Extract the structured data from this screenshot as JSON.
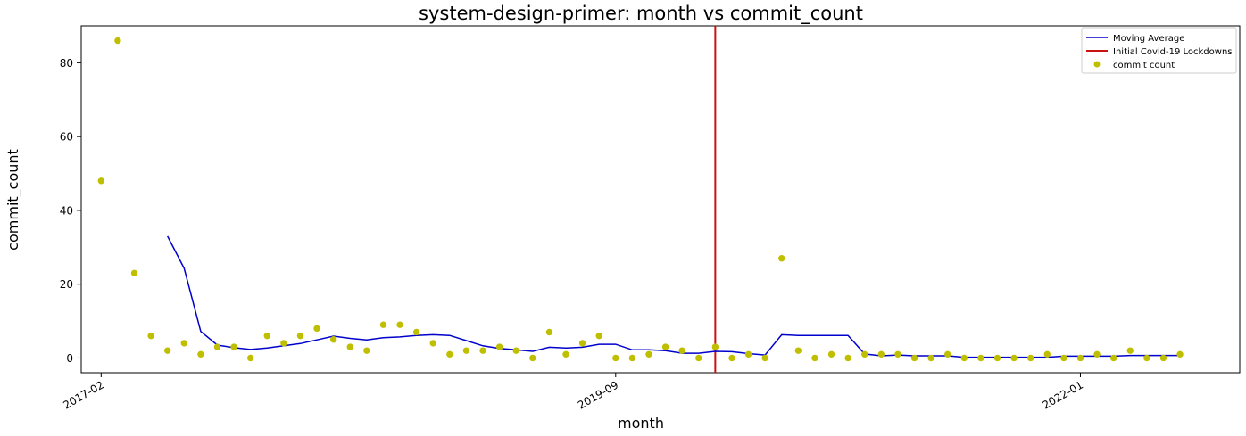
{
  "chart_data": {
    "type": "scatter",
    "title": "system-design-primer: month vs commit_count",
    "xlabel": "month",
    "ylabel": "commit_count",
    "x_ticks": [
      "2017-02",
      "2019-09",
      "2022-01"
    ],
    "x_tick_index": [
      0,
      31,
      59
    ],
    "y_ticks": [
      0,
      20,
      40,
      60,
      80
    ],
    "ylim": [
      -4,
      90
    ],
    "xlim_index": [
      -1.2,
      68.6
    ],
    "grid": false,
    "legend_position": "top-right",
    "legend": [
      {
        "label": "Moving Average",
        "kind": "line",
        "color": "#0000cc"
      },
      {
        "label": "Initial Covid-19 Lockdowns",
        "kind": "vline",
        "color": "#cc1111"
      },
      {
        "label": "commit count",
        "kind": "marker",
        "color": "#bfbf00"
      }
    ],
    "covid_lockdown_index": 37,
    "series": [
      {
        "name": "commit count",
        "type": "scatter",
        "color": "#bfbf00",
        "values": [
          48,
          86,
          23,
          6,
          2,
          4,
          1,
          3,
          3,
          0,
          6,
          4,
          6,
          8,
          5,
          3,
          2,
          9,
          9,
          7,
          4,
          1,
          2,
          2,
          3,
          2,
          0,
          7,
          1,
          4,
          6,
          0,
          0,
          1,
          3,
          2,
          0,
          3,
          0,
          1,
          0,
          27,
          2,
          0,
          1,
          0,
          1,
          1,
          1,
          0,
          0,
          1,
          0,
          0,
          0,
          0,
          0,
          1,
          0,
          0,
          1,
          0,
          2,
          0,
          0,
          1
        ]
      },
      {
        "name": "Moving Average",
        "type": "line",
        "color": "#0000cc",
        "start_index": 4,
        "values": [
          33,
          24.3,
          7.2,
          3.5,
          2.8,
          2.3,
          2.7,
          3.3,
          3.9,
          4.9,
          5.9,
          5.3,
          4.9,
          5.5,
          5.7,
          6.1,
          6.3,
          6.1,
          4.7,
          3.3,
          2.6,
          2.2,
          1.8,
          2.9,
          2.7,
          2.9,
          3.7,
          3.7,
          2.2,
          2.2,
          2.0,
          1.3,
          1.3,
          1.8,
          1.7,
          1.2,
          0.8,
          6.3,
          6.1,
          6.1,
          6.1,
          6.1,
          1.1,
          0.6,
          0.8,
          0.6,
          0.6,
          0.6,
          0.2,
          0.2,
          0.2,
          0.2,
          0.2,
          0.2,
          0.5,
          0.5,
          0.5,
          0.5,
          0.7,
          0.7,
          0.7,
          0.7
        ]
      }
    ]
  }
}
